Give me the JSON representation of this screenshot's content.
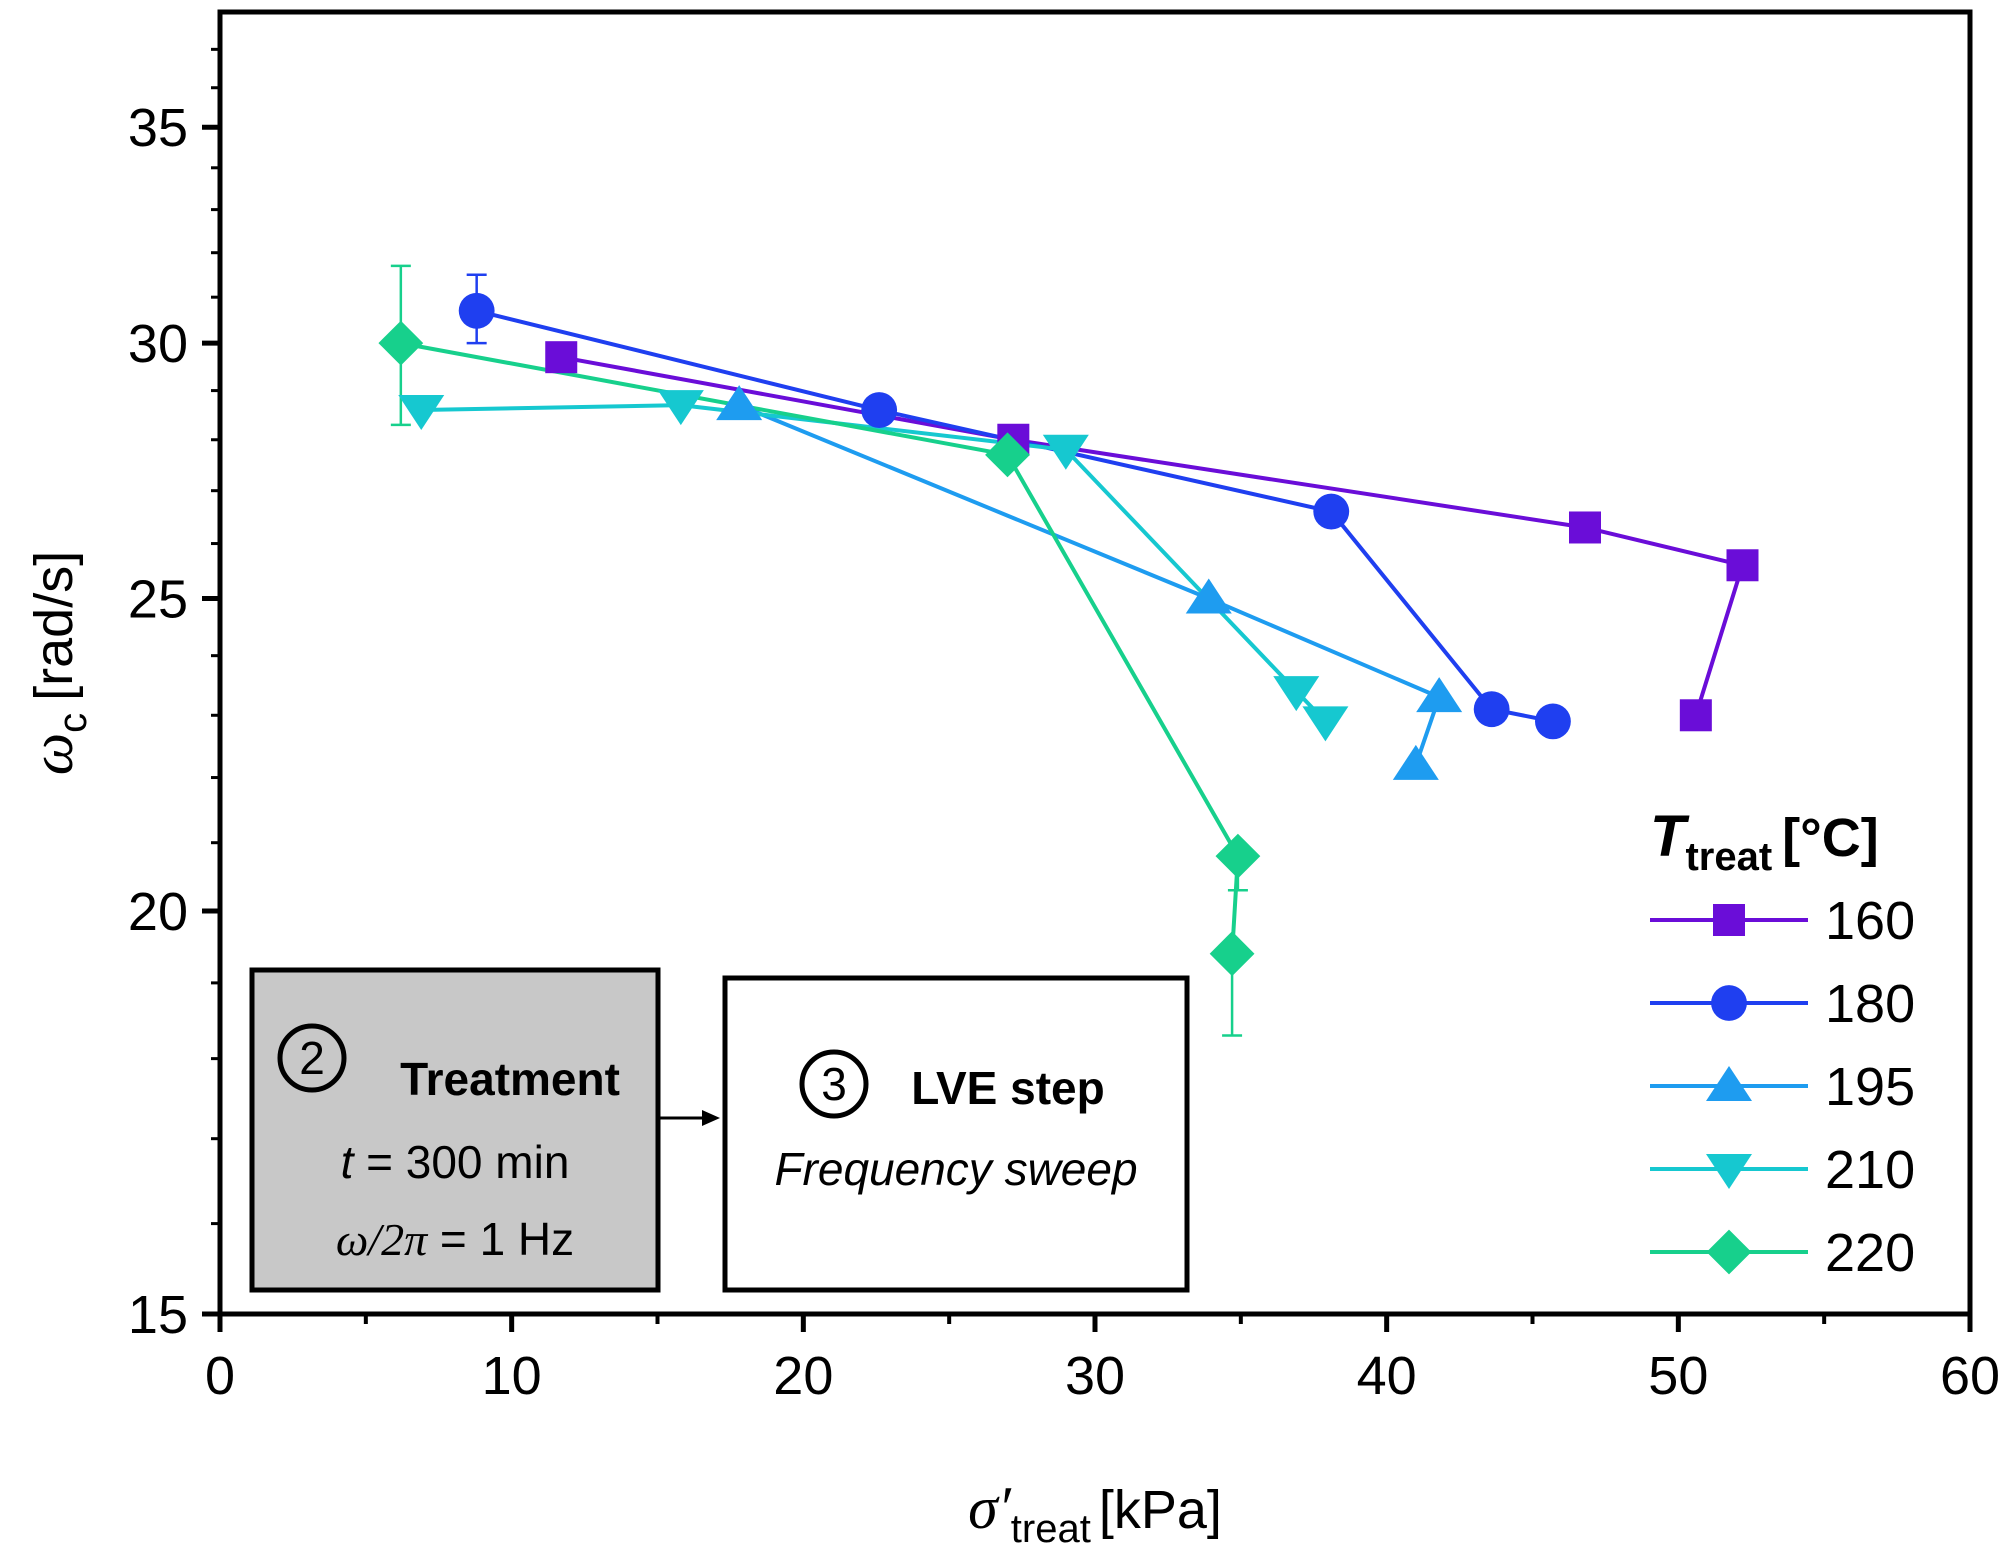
{
  "chart_data": {
    "type": "line",
    "x_axis": {
      "label_main": "σ′",
      "label_sub": "treat",
      "label_unit": "[kPa]",
      "range": [
        0,
        60
      ],
      "ticks": [
        0,
        10,
        20,
        30,
        40,
        50,
        60
      ],
      "minor_ticks": [
        5,
        15,
        25,
        35,
        45,
        55
      ]
    },
    "y_axis": {
      "label_main": "ω",
      "label_sub": "c",
      "label_unit": "[rad/s]",
      "scale": "log",
      "range": [
        15,
        38
      ],
      "ticks": [
        15,
        20,
        25,
        30,
        35
      ]
    },
    "legend": {
      "title_main": "T",
      "title_sub": "treat",
      "title_unit": "[°C]",
      "placement": "right"
    },
    "series": [
      {
        "name": "160",
        "color": "#6a0dd8",
        "marker": "square",
        "points": [
          [
            11.7,
            29.7
          ],
          [
            27.2,
            28.0
          ],
          [
            46.8,
            26.3
          ],
          [
            52.2,
            25.6
          ],
          [
            50.6,
            23.0
          ]
        ],
        "error_bars": []
      },
      {
        "name": "180",
        "color": "#1f3ff0",
        "marker": "circle",
        "points": [
          [
            8.8,
            30.7
          ],
          [
            22.6,
            28.6
          ],
          [
            38.1,
            26.6
          ],
          [
            43.6,
            23.1
          ],
          [
            45.7,
            22.9
          ]
        ],
        "error_bars": [
          {
            "index": 0,
            "low": 30.0,
            "high": 31.5
          }
        ]
      },
      {
        "name": "195",
        "color": "#1e9cf0",
        "marker": "triangle-up",
        "points": [
          [
            17.8,
            28.7
          ],
          [
            33.9,
            25.0
          ],
          [
            41.8,
            23.3
          ],
          [
            41.0,
            22.2
          ]
        ],
        "error_bars": []
      },
      {
        "name": "210",
        "color": "#16c8d0",
        "marker": "triangle-down",
        "points": [
          [
            6.9,
            28.6
          ],
          [
            15.8,
            28.7
          ],
          [
            29.0,
            27.8
          ],
          [
            36.9,
            23.4
          ],
          [
            37.9,
            22.9
          ]
        ],
        "error_bars": []
      },
      {
        "name": "220",
        "color": "#17d08c",
        "marker": "diamond",
        "points": [
          [
            6.2,
            30.0
          ],
          [
            27.0,
            27.7
          ],
          [
            34.9,
            20.8
          ],
          [
            34.7,
            19.4
          ]
        ],
        "error_bars": [
          {
            "index": 0,
            "low": 28.3,
            "high": 31.7
          },
          {
            "index": 2,
            "low": 20.3,
            "high": 20.8
          },
          {
            "index": 3,
            "low": 18.3,
            "high": 19.4
          }
        ]
      }
    ],
    "annotations": {
      "treatment_box": {
        "number": "2",
        "title": "Treatment",
        "line1_var": "t",
        "line1_rest": " = 300 min",
        "line2_expr": "ω/2π",
        "line2_rest": " = 1 Hz",
        "fill": "#c8c8c8"
      },
      "lve_box": {
        "number": "3",
        "title": "LVE step",
        "subtitle": "Frequency sweep"
      }
    }
  }
}
